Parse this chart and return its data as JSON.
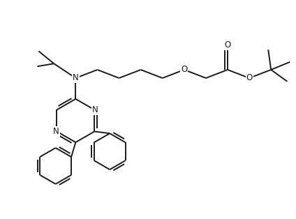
{
  "bg_color": "#ffffff",
  "line_color": "#1a1a1a",
  "line_width": 1.4,
  "figsize": [
    4.24,
    3.14
  ],
  "dpi": 100,
  "xlim": [
    0,
    10.6
  ],
  "ylim": [
    0,
    7.8
  ]
}
